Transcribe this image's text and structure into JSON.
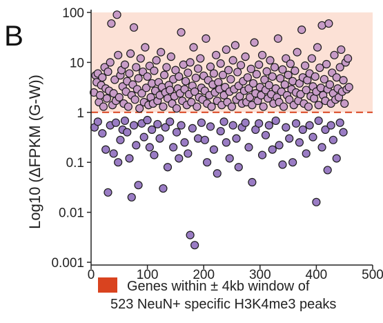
{
  "panel_label": "B",
  "legend": {
    "line1": "Genes within ± 4kb window of",
    "line2": "523 NeuN+ specific H3K4me3 peaks",
    "swatch_color": "#d9431f"
  },
  "colors": {
    "shaded_region": "#fce1d6",
    "threshold_line": "#d9431f",
    "point_above": "#c79bc7",
    "point_below": "#9a7cc4",
    "point_stroke": "#1a1a1a"
  },
  "chart_data": {
    "type": "scatter",
    "title": "",
    "xlabel": "",
    "ylabel": "Log10 (ΔFPKM (G-W))",
    "xlim": [
      0,
      500
    ],
    "ylim": [
      0.001,
      100
    ],
    "y_scale": "log",
    "xticks": [
      "0",
      "100",
      "200",
      "300",
      "400",
      "500"
    ],
    "yticks": [
      "0.001",
      "0.01",
      "0.1",
      "1",
      "10",
      "100"
    ],
    "threshold": 1,
    "shaded_region": [
      1,
      100
    ],
    "grid": false,
    "legend_position": "bottom",
    "points": [
      [
        5,
        2.5
      ],
      [
        8,
        5.5
      ],
      [
        10,
        4
      ],
      [
        12,
        6
      ],
      [
        14,
        1.6
      ],
      [
        16,
        2.2
      ],
      [
        18,
        3.5
      ],
      [
        20,
        5
      ],
      [
        22,
        1.3
      ],
      [
        24,
        8
      ],
      [
        26,
        3
      ],
      [
        28,
        1.9
      ],
      [
        30,
        6.5
      ],
      [
        32,
        2.7
      ],
      [
        34,
        10
      ],
      [
        36,
        60
      ],
      [
        38,
        1.4
      ],
      [
        40,
        2.4
      ],
      [
        42,
        4.5
      ],
      [
        44,
        1.7
      ],
      [
        46,
        90
      ],
      [
        48,
        14
      ],
      [
        50,
        2
      ],
      [
        52,
        5.5
      ],
      [
        54,
        7
      ],
      [
        56,
        3.3
      ],
      [
        58,
        1.5
      ],
      [
        60,
        9
      ],
      [
        62,
        2.6
      ],
      [
        64,
        4.2
      ],
      [
        66,
        1.3
      ],
      [
        68,
        6
      ],
      [
        70,
        15
      ],
      [
        72,
        2.2
      ],
      [
        74,
        3.6
      ],
      [
        76,
        50
      ],
      [
        78,
        1.8
      ],
      [
        80,
        8
      ],
      [
        82,
        2.9
      ],
      [
        84,
        4.8
      ],
      [
        86,
        1.2
      ],
      [
        88,
        12
      ],
      [
        90,
        2.4
      ],
      [
        92,
        6.5
      ],
      [
        94,
        1.6
      ],
      [
        96,
        20
      ],
      [
        98,
        3.1
      ],
      [
        100,
        5.2
      ],
      [
        102,
        1.4
      ],
      [
        104,
        8.5
      ],
      [
        106,
        2
      ],
      [
        108,
        3.8
      ],
      [
        110,
        1.5
      ],
      [
        112,
        6.8
      ],
      [
        114,
        2.7
      ],
      [
        116,
        11
      ],
      [
        118,
        1.7
      ],
      [
        120,
        4
      ],
      [
        122,
        2.2
      ],
      [
        124,
        16
      ],
      [
        126,
        3.2
      ],
      [
        128,
        1.3
      ],
      [
        130,
        5.6
      ],
      [
        132,
        2.5
      ],
      [
        134,
        8
      ],
      [
        136,
        1.9
      ],
      [
        138,
        3.5
      ],
      [
        140,
        2.8
      ],
      [
        142,
        13
      ],
      [
        144,
        1.5
      ],
      [
        146,
        4.6
      ],
      [
        148,
        2.1
      ],
      [
        150,
        7
      ],
      [
        152,
        1.2
      ],
      [
        154,
        3
      ],
      [
        156,
        5.2
      ],
      [
        158,
        2.4
      ],
      [
        160,
        40
      ],
      [
        162,
        1.7
      ],
      [
        164,
        9
      ],
      [
        166,
        2.9
      ],
      [
        168,
        4.2
      ],
      [
        170,
        1.4
      ],
      [
        172,
        6.2
      ],
      [
        174,
        2.3
      ],
      [
        176,
        10
      ],
      [
        178,
        1.6
      ],
      [
        180,
        3.4
      ],
      [
        182,
        20
      ],
      [
        184,
        2.6
      ],
      [
        186,
        4.9
      ],
      [
        188,
        1.3
      ],
      [
        190,
        7.5
      ],
      [
        192,
        2
      ],
      [
        194,
        12
      ],
      [
        196,
        3.1
      ],
      [
        198,
        1.8
      ],
      [
        200,
        5.4
      ],
      [
        202,
        2.7
      ],
      [
        204,
        30
      ],
      [
        206,
        1.5
      ],
      [
        208,
        4.4
      ],
      [
        210,
        2.2
      ],
      [
        212,
        8.2
      ],
      [
        214,
        1.3
      ],
      [
        216,
        3.6
      ],
      [
        218,
        6
      ],
      [
        220,
        2.5
      ],
      [
        222,
        14
      ],
      [
        224,
        1.7
      ],
      [
        226,
        4
      ],
      [
        228,
        2.9
      ],
      [
        230,
        9.5
      ],
      [
        232,
        1.4
      ],
      [
        234,
        5.6
      ],
      [
        236,
        2.2
      ],
      [
        238,
        3.2
      ],
      [
        240,
        18
      ],
      [
        242,
        1.6
      ],
      [
        244,
        7
      ],
      [
        246,
        2.6
      ],
      [
        248,
        4.6
      ],
      [
        250,
        1.3
      ],
      [
        252,
        11
      ],
      [
        254,
        2.9
      ],
      [
        256,
        22
      ],
      [
        258,
        1.8
      ],
      [
        260,
        6.4
      ],
      [
        262,
        3.4
      ],
      [
        264,
        2.1
      ],
      [
        266,
        8.8
      ],
      [
        268,
        1.5
      ],
      [
        270,
        4.2
      ],
      [
        272,
        2.7
      ],
      [
        274,
        13
      ],
      [
        276,
        1.6
      ],
      [
        278,
        5
      ],
      [
        280,
        3
      ],
      [
        282,
        2
      ],
      [
        284,
        7.4
      ],
      [
        286,
        1.4
      ],
      [
        288,
        3.8
      ],
      [
        290,
        25
      ],
      [
        292,
        2.4
      ],
      [
        294,
        5.8
      ],
      [
        296,
        1.7
      ],
      [
        298,
        9
      ],
      [
        300,
        3.2
      ],
      [
        302,
        2.2
      ],
      [
        304,
        14
      ],
      [
        306,
        1.3
      ],
      [
        308,
        4.5
      ],
      [
        310,
        2.8
      ],
      [
        312,
        6.6
      ],
      [
        314,
        1.9
      ],
      [
        316,
        3.5
      ],
      [
        318,
        11
      ],
      [
        320,
        2.3
      ],
      [
        322,
        5.2
      ],
      [
        324,
        1.5
      ],
      [
        326,
        8
      ],
      [
        328,
        3
      ],
      [
        330,
        2
      ],
      [
        332,
        30
      ],
      [
        334,
        1.6
      ],
      [
        336,
        4.8
      ],
      [
        338,
        2.6
      ],
      [
        340,
        7.2
      ],
      [
        342,
        1.3
      ],
      [
        344,
        3.6
      ],
      [
        346,
        12
      ],
      [
        348,
        2.2
      ],
      [
        350,
        5.6
      ],
      [
        352,
        1.8
      ],
      [
        354,
        9.4
      ],
      [
        356,
        2.9
      ],
      [
        358,
        4.2
      ],
      [
        360,
        1.4
      ],
      [
        362,
        6.8
      ],
      [
        364,
        2.5
      ],
      [
        366,
        16
      ],
      [
        368,
        1.7
      ],
      [
        370,
        3.8
      ],
      [
        372,
        2.3
      ],
      [
        374,
        45
      ],
      [
        376,
        5
      ],
      [
        378,
        1.5
      ],
      [
        380,
        8.6
      ],
      [
        382,
        2.8
      ],
      [
        384,
        4.4
      ],
      [
        386,
        1.3
      ],
      [
        388,
        6
      ],
      [
        390,
        2.1
      ],
      [
        392,
        12
      ],
      [
        394,
        3.3
      ],
      [
        396,
        1.9
      ],
      [
        398,
        5.2
      ],
      [
        400,
        2.6
      ],
      [
        402,
        20
      ],
      [
        404,
        1.4
      ],
      [
        406,
        7.8
      ],
      [
        408,
        3.1
      ],
      [
        410,
        55
      ],
      [
        412,
        2.2
      ],
      [
        414,
        4.6
      ],
      [
        416,
        1.7
      ],
      [
        418,
        9.2
      ],
      [
        420,
        2.9
      ],
      [
        422,
        60
      ],
      [
        424,
        3.6
      ],
      [
        426,
        1.5
      ],
      [
        428,
        6.2
      ],
      [
        430,
        2.4
      ],
      [
        432,
        14
      ],
      [
        434,
        1.8
      ],
      [
        436,
        5
      ],
      [
        438,
        3
      ],
      [
        440,
        2
      ],
      [
        442,
        8
      ],
      [
        444,
        18
      ],
      [
        446,
        2.6
      ],
      [
        448,
        4.4
      ],
      [
        450,
        1.5
      ],
      [
        452,
        10
      ],
      [
        454,
        2.9
      ],
      [
        456,
        12
      ],
      [
        458,
        3.2
      ],
      [
        6,
        0.5
      ],
      [
        12,
        0.65
      ],
      [
        20,
        0.38
      ],
      [
        26,
        0.18
      ],
      [
        30,
        0.025
      ],
      [
        34,
        0.55
      ],
      [
        40,
        0.15
      ],
      [
        44,
        0.62
      ],
      [
        48,
        0.1
      ],
      [
        52,
        0.28
      ],
      [
        56,
        0.45
      ],
      [
        60,
        0.68
      ],
      [
        64,
        0.4
      ],
      [
        68,
        0.12
      ],
      [
        72,
        0.02
      ],
      [
        76,
        0.55
      ],
      [
        80,
        0.22
      ],
      [
        84,
        0.035
      ],
      [
        90,
        0.6
      ],
      [
        94,
        0.32
      ],
      [
        100,
        0.7
      ],
      [
        104,
        0.2
      ],
      [
        108,
        0.45
      ],
      [
        112,
        0.14
      ],
      [
        118,
        0.58
      ],
      [
        122,
        0.3
      ],
      [
        128,
        0.03
      ],
      [
        132,
        0.5
      ],
      [
        136,
        0.08
      ],
      [
        140,
        0.65
      ],
      [
        146,
        0.2
      ],
      [
        152,
        0.4
      ],
      [
        156,
        0.12
      ],
      [
        160,
        0.55
      ],
      [
        166,
        0.25
      ],
      [
        172,
        0.15
      ],
      [
        176,
        0.0035
      ],
      [
        180,
        0.48
      ],
      [
        184,
        0.0022
      ],
      [
        190,
        0.3
      ],
      [
        196,
        0.62
      ],
      [
        202,
        0.28
      ],
      [
        206,
        0.1
      ],
      [
        212,
        0.52
      ],
      [
        218,
        0.18
      ],
      [
        224,
        0.06
      ],
      [
        230,
        0.42
      ],
      [
        236,
        0.65
      ],
      [
        240,
        0.25
      ],
      [
        246,
        0.12
      ],
      [
        252,
        0.55
      ],
      [
        258,
        0.3
      ],
      [
        262,
        0.08
      ],
      [
        268,
        0.5
      ],
      [
        274,
        0.62
      ],
      [
        280,
        0.2
      ],
      [
        286,
        0.04
      ],
      [
        292,
        0.45
      ],
      [
        298,
        0.6
      ],
      [
        304,
        0.14
      ],
      [
        310,
        0.35
      ],
      [
        316,
        0.55
      ],
      [
        322,
        0.18
      ],
      [
        328,
        0.68
      ],
      [
        334,
        0.22
      ],
      [
        340,
        0.09
      ],
      [
        346,
        0.5
      ],
      [
        352,
        0.3
      ],
      [
        358,
        0.1
      ],
      [
        364,
        0.6
      ],
      [
        370,
        0.25
      ],
      [
        376,
        0.45
      ],
      [
        382,
        0.15
      ],
      [
        388,
        0.55
      ],
      [
        394,
        0.32
      ],
      [
        400,
        0.016
      ],
      [
        404,
        0.68
      ],
      [
        410,
        0.2
      ],
      [
        416,
        0.45
      ],
      [
        420,
        0.07
      ],
      [
        426,
        0.55
      ],
      [
        430,
        0.28
      ],
      [
        436,
        0.12
      ],
      [
        442,
        0.62
      ],
      [
        448,
        0.4
      ]
    ]
  }
}
